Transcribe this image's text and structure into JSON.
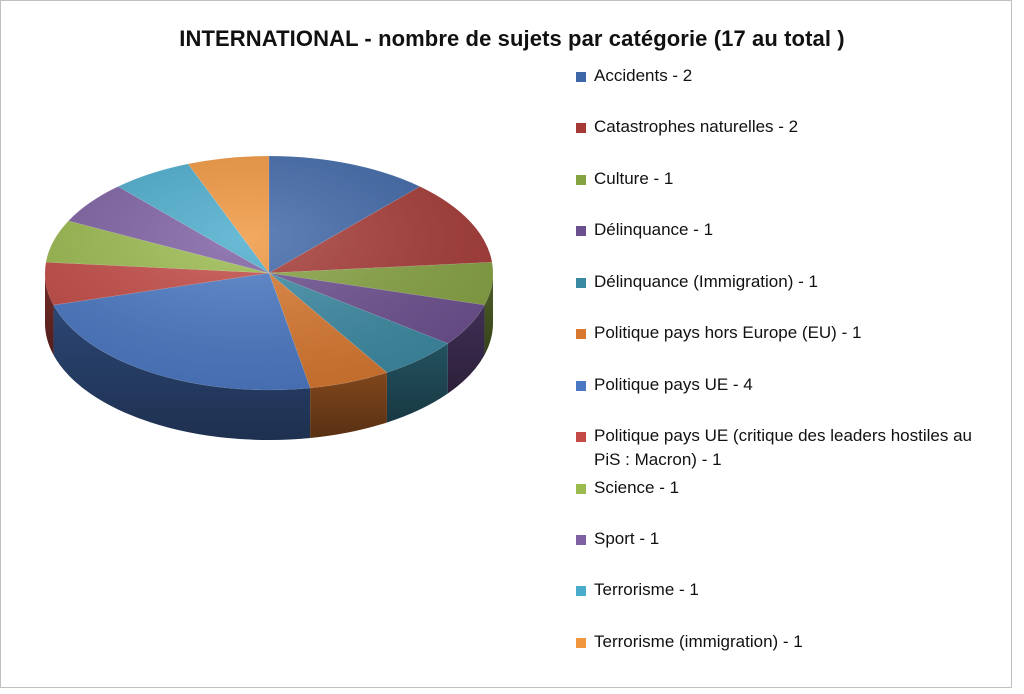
{
  "chart_data": {
    "type": "pie",
    "title": "INTERNATIONAL - nombre de sujets par catégorie (17 au total )",
    "slices": [
      {
        "label": "Accidents - 2",
        "name": "Accidents",
        "value": 2,
        "color": "#3e67a8"
      },
      {
        "label": "Catastrophes naturelles - 2",
        "name": "Catastrophes naturelles",
        "value": 2,
        "color": "#a63a36"
      },
      {
        "label": "Culture - 1",
        "name": "Culture",
        "value": 1,
        "color": "#86a342"
      },
      {
        "label": "Délinquance - 1",
        "name": "Délinquance",
        "value": 1,
        "color": "#6c4f8f"
      },
      {
        "label": "Délinquance (Immigration) - 1",
        "name": "Délinquance (Immigration)",
        "value": 1,
        "color": "#3b8aa3"
      },
      {
        "label": "Politique pays hors Europe (EU) - 1",
        "name": "Politique pays hors Europe (EU)",
        "value": 1,
        "color": "#d9782f"
      },
      {
        "label": "Politique pays UE - 4",
        "name": "Politique pays UE",
        "value": 4,
        "color": "#4a78c4"
      },
      {
        "label": "Politique pays UE (critique des leaders hostiles au PiS : Macron) - 1",
        "name": "Politique pays UE (critique des leaders hostiles au PiS : Macron)",
        "value": 1,
        "color": "#c44a45"
      },
      {
        "label": "Science - 1",
        "name": "Science",
        "value": 1,
        "color": "#9bbb4e"
      },
      {
        "label": "Sport - 1",
        "name": "Sport",
        "value": 1,
        "color": "#7e60a3"
      },
      {
        "label": "Terrorisme - 1",
        "name": "Terrorisme",
        "value": 1,
        "color": "#4aaccc"
      },
      {
        "label": "Terrorisme (immigration) - 1",
        "name": "Terrorisme (immigration)",
        "value": 1,
        "color": "#f0963d"
      }
    ],
    "legend_position": "right"
  }
}
